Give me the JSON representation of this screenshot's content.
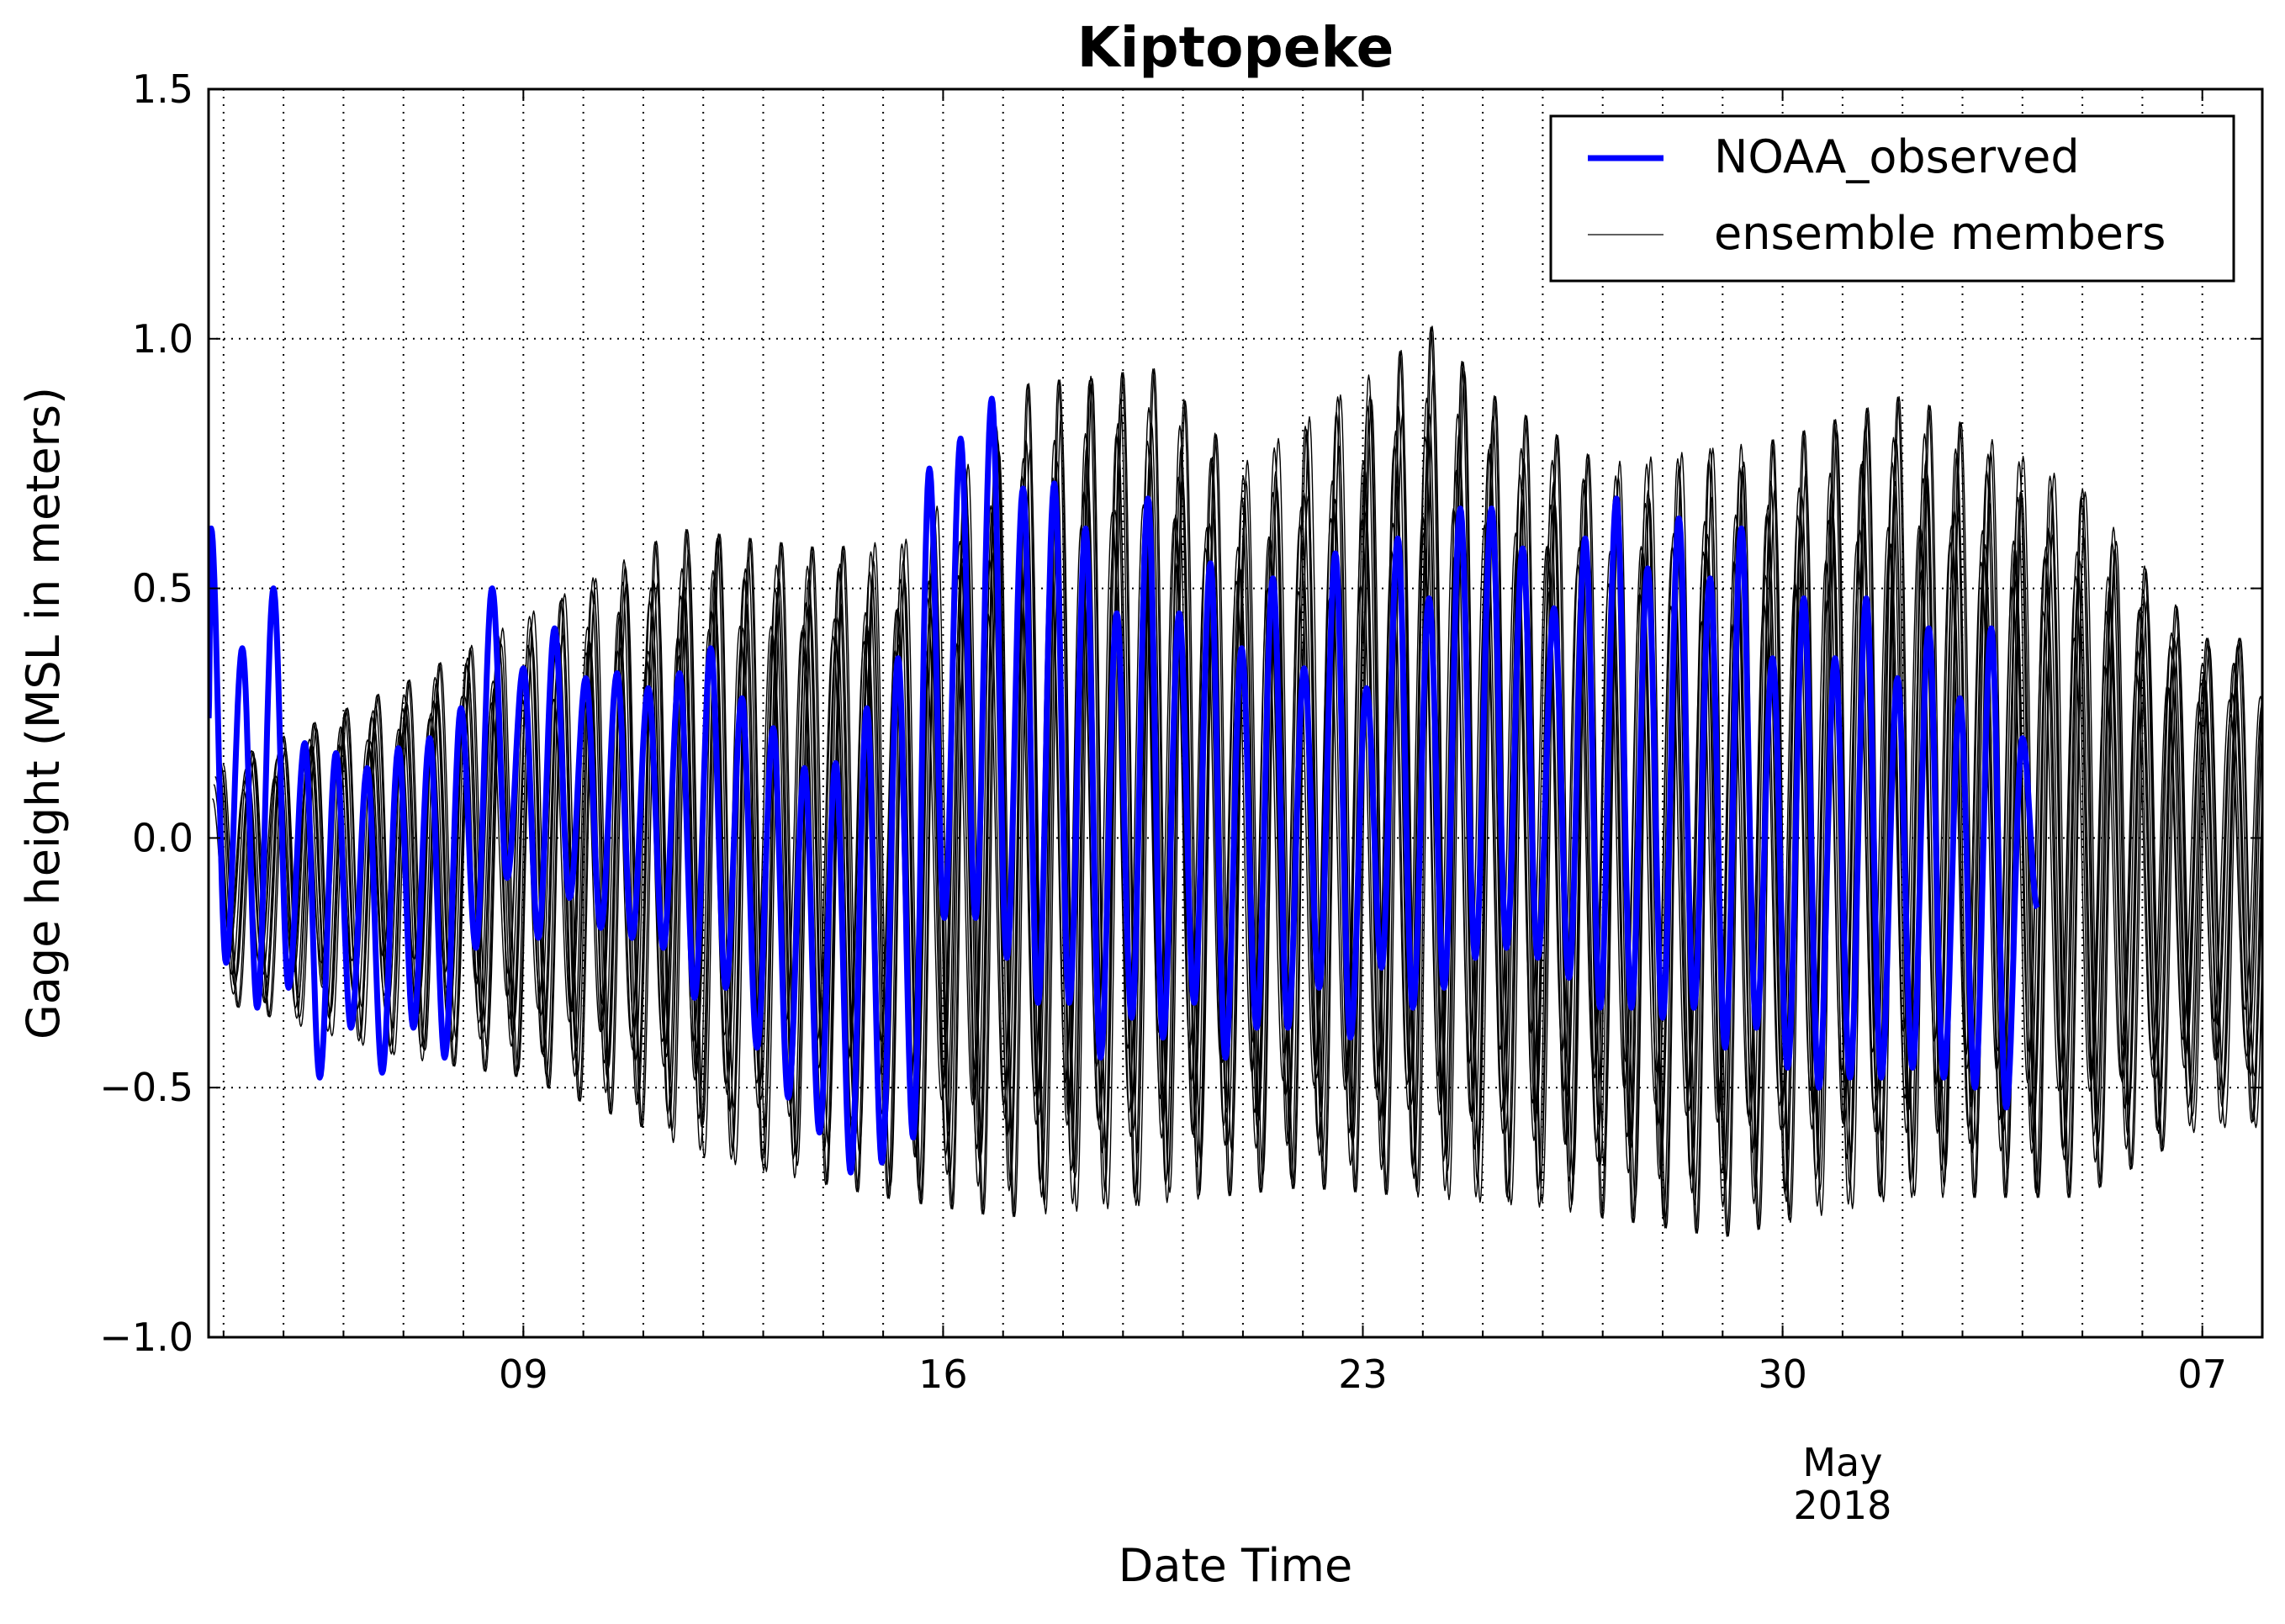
{
  "chart_data": {
    "type": "line",
    "title": "Kiptopeke",
    "xlabel": "Date Time",
    "ylabel": "Gage height (MSL in meters)",
    "ylim": [
      -1.0,
      1.5
    ],
    "xlim": [
      "2018-04-03T18:00",
      "2018-05-08T00:00"
    ],
    "yticks": [
      {
        "value": 1.5,
        "label": "1.5"
      },
      {
        "value": 1.0,
        "label": "1.0"
      },
      {
        "value": 0.5,
        "label": "0.5"
      },
      {
        "value": 0.0,
        "label": "0.0"
      },
      {
        "value": -0.5,
        "label": "−0.5"
      },
      {
        "value": -1.0,
        "label": "−1.0"
      }
    ],
    "xticks_major": [
      {
        "date": "2018-04-09",
        "label": "09"
      },
      {
        "date": "2018-04-16",
        "label": "16"
      },
      {
        "date": "2018-04-23",
        "label": "23"
      },
      {
        "date": "2018-04-30",
        "label": "30"
      },
      {
        "date": "2018-05-07",
        "label": "07"
      }
    ],
    "x_offset_label": {
      "date": "2018-05-01",
      "lines": [
        "May",
        "2018"
      ]
    },
    "grid": true,
    "grid_style": "dotted",
    "legend": {
      "position": "top-right",
      "entries": [
        {
          "label": "NOAA_observed",
          "color": "#0000ff"
        },
        {
          "label": "ensemble members",
          "color": "#000000"
        }
      ]
    },
    "series": [
      {
        "name": "NOAA_observed",
        "color": "#0000ff",
        "x_end": "2018-05-04T06:00",
        "high_tides": [
          {
            "date": "2018-04-03T19:00",
            "value": 0.62
          },
          {
            "date": "2018-04-04T07:30",
            "value": 0.38
          },
          {
            "date": "2018-04-04T20:00",
            "value": 0.5
          },
          {
            "date": "2018-04-05T08:30",
            "value": 0.19
          },
          {
            "date": "2018-04-05T21:00",
            "value": 0.17
          },
          {
            "date": "2018-04-06T09:30",
            "value": 0.14
          },
          {
            "date": "2018-04-06T22:00",
            "value": 0.18
          },
          {
            "date": "2018-04-07T10:30",
            "value": 0.2
          },
          {
            "date": "2018-04-07T23:00",
            "value": 0.26
          },
          {
            "date": "2018-04-08T11:30",
            "value": 0.5
          },
          {
            "date": "2018-04-09T00:00",
            "value": 0.34
          },
          {
            "date": "2018-04-09T12:30",
            "value": 0.42
          },
          {
            "date": "2018-04-10T01:00",
            "value": 0.32
          },
          {
            "date": "2018-04-10T13:30",
            "value": 0.33
          },
          {
            "date": "2018-04-11T02:00",
            "value": 0.3
          },
          {
            "date": "2018-04-11T14:30",
            "value": 0.33
          },
          {
            "date": "2018-04-12T03:00",
            "value": 0.38
          },
          {
            "date": "2018-04-12T15:30",
            "value": 0.28
          },
          {
            "date": "2018-04-13T04:00",
            "value": 0.22
          },
          {
            "date": "2018-04-13T16:30",
            "value": 0.14
          },
          {
            "date": "2018-04-14T05:00",
            "value": 0.15
          },
          {
            "date": "2018-04-14T17:30",
            "value": 0.26
          },
          {
            "date": "2018-04-15T06:00",
            "value": 0.36
          },
          {
            "date": "2018-04-15T18:30",
            "value": 0.74
          },
          {
            "date": "2018-04-16T07:00",
            "value": 0.8
          },
          {
            "date": "2018-04-16T19:30",
            "value": 0.88
          },
          {
            "date": "2018-04-17T08:00",
            "value": 0.7
          },
          {
            "date": "2018-04-17T20:30",
            "value": 0.71
          },
          {
            "date": "2018-04-18T09:00",
            "value": 0.62
          },
          {
            "date": "2018-04-18T21:30",
            "value": 0.45
          },
          {
            "date": "2018-04-19T10:00",
            "value": 0.68
          },
          {
            "date": "2018-04-19T22:30",
            "value": 0.45
          },
          {
            "date": "2018-04-20T11:00",
            "value": 0.55
          },
          {
            "date": "2018-04-20T23:30",
            "value": 0.38
          },
          {
            "date": "2018-04-21T12:00",
            "value": 0.52
          },
          {
            "date": "2018-04-22T00:30",
            "value": 0.34
          },
          {
            "date": "2018-04-22T13:00",
            "value": 0.57
          },
          {
            "date": "2018-04-23T01:30",
            "value": 0.3
          },
          {
            "date": "2018-04-23T14:00",
            "value": 0.6
          },
          {
            "date": "2018-04-24T02:30",
            "value": 0.48
          },
          {
            "date": "2018-04-24T15:00",
            "value": 0.66
          },
          {
            "date": "2018-04-25T03:30",
            "value": 0.66
          },
          {
            "date": "2018-04-25T16:00",
            "value": 0.58
          },
          {
            "date": "2018-04-26T04:30",
            "value": 0.46
          },
          {
            "date": "2018-04-26T17:00",
            "value": 0.6
          },
          {
            "date": "2018-04-27T05:30",
            "value": 0.68
          },
          {
            "date": "2018-04-27T18:00",
            "value": 0.54
          },
          {
            "date": "2018-04-28T06:30",
            "value": 0.64
          },
          {
            "date": "2018-04-28T19:00",
            "value": 0.52
          },
          {
            "date": "2018-04-29T07:30",
            "value": 0.62
          },
          {
            "date": "2018-04-29T20:00",
            "value": 0.36
          },
          {
            "date": "2018-04-30T08:30",
            "value": 0.48
          },
          {
            "date": "2018-04-30T21:00",
            "value": 0.36
          },
          {
            "date": "2018-05-01T09:30",
            "value": 0.48
          },
          {
            "date": "2018-05-01T22:00",
            "value": 0.32
          },
          {
            "date": "2018-05-02T10:30",
            "value": 0.42
          },
          {
            "date": "2018-05-02T23:00",
            "value": 0.28
          },
          {
            "date": "2018-05-03T11:30",
            "value": 0.42
          },
          {
            "date": "2018-05-04T00:00",
            "value": 0.2
          }
        ],
        "low_tides": [
          {
            "date": "2018-04-04T01:00",
            "value": -0.25
          },
          {
            "date": "2018-04-04T13:30",
            "value": -0.34
          },
          {
            "date": "2018-04-05T02:00",
            "value": -0.3
          },
          {
            "date": "2018-04-05T14:30",
            "value": -0.48
          },
          {
            "date": "2018-04-06T03:00",
            "value": -0.38
          },
          {
            "date": "2018-04-06T15:30",
            "value": -0.47
          },
          {
            "date": "2018-04-07T04:00",
            "value": -0.38
          },
          {
            "date": "2018-04-07T16:30",
            "value": -0.44
          },
          {
            "date": "2018-04-08T05:00",
            "value": -0.22
          },
          {
            "date": "2018-04-08T17:30",
            "value": -0.08
          },
          {
            "date": "2018-04-09T06:00",
            "value": -0.2
          },
          {
            "date": "2018-04-09T18:30",
            "value": -0.12
          },
          {
            "date": "2018-04-10T07:00",
            "value": -0.18
          },
          {
            "date": "2018-04-10T19:30",
            "value": -0.2
          },
          {
            "date": "2018-04-11T08:00",
            "value": -0.22
          },
          {
            "date": "2018-04-11T20:30",
            "value": -0.32
          },
          {
            "date": "2018-04-12T09:00",
            "value": -0.3
          },
          {
            "date": "2018-04-12T21:30",
            "value": -0.42
          },
          {
            "date": "2018-04-13T10:00",
            "value": -0.52
          },
          {
            "date": "2018-04-13T22:30",
            "value": -0.59
          },
          {
            "date": "2018-04-14T11:00",
            "value": -0.67
          },
          {
            "date": "2018-04-14T23:30",
            "value": -0.65
          },
          {
            "date": "2018-04-15T12:00",
            "value": -0.6
          },
          {
            "date": "2018-04-16T00:30",
            "value": -0.16
          },
          {
            "date": "2018-04-16T13:00",
            "value": -0.16
          },
          {
            "date": "2018-04-17T01:30",
            "value": -0.24
          },
          {
            "date": "2018-04-17T14:00",
            "value": -0.33
          },
          {
            "date": "2018-04-18T02:30",
            "value": -0.33
          },
          {
            "date": "2018-04-18T15:00",
            "value": -0.44
          },
          {
            "date": "2018-04-19T03:30",
            "value": -0.36
          },
          {
            "date": "2018-04-19T16:00",
            "value": -0.4
          },
          {
            "date": "2018-04-20T04:30",
            "value": -0.33
          },
          {
            "date": "2018-04-20T17:00",
            "value": -0.44
          },
          {
            "date": "2018-04-21T05:30",
            "value": -0.38
          },
          {
            "date": "2018-04-21T18:00",
            "value": -0.38
          },
          {
            "date": "2018-04-22T06:30",
            "value": -0.3
          },
          {
            "date": "2018-04-22T19:00",
            "value": -0.4
          },
          {
            "date": "2018-04-23T07:30",
            "value": -0.26
          },
          {
            "date": "2018-04-23T20:00",
            "value": -0.34
          },
          {
            "date": "2018-04-24T08:30",
            "value": -0.3
          },
          {
            "date": "2018-04-24T21:00",
            "value": -0.24
          },
          {
            "date": "2018-04-25T09:30",
            "value": -0.22
          },
          {
            "date": "2018-04-25T22:00",
            "value": -0.24
          },
          {
            "date": "2018-04-26T10:30",
            "value": -0.28
          },
          {
            "date": "2018-04-26T23:00",
            "value": -0.34
          },
          {
            "date": "2018-04-27T11:30",
            "value": -0.34
          },
          {
            "date": "2018-04-28T00:00",
            "value": -0.36
          },
          {
            "date": "2018-04-28T12:30",
            "value": -0.34
          },
          {
            "date": "2018-04-29T01:00",
            "value": -0.42
          },
          {
            "date": "2018-04-29T13:30",
            "value": -0.38
          },
          {
            "date": "2018-04-30T02:00",
            "value": -0.46
          },
          {
            "date": "2018-04-30T14:30",
            "value": -0.5
          },
          {
            "date": "2018-05-01T03:00",
            "value": -0.48
          },
          {
            "date": "2018-05-01T15:30",
            "value": -0.48
          },
          {
            "date": "2018-05-02T04:00",
            "value": -0.46
          },
          {
            "date": "2018-05-02T16:30",
            "value": -0.48
          },
          {
            "date": "2018-05-03T05:00",
            "value": -0.5
          },
          {
            "date": "2018-05-03T17:30",
            "value": -0.54
          },
          {
            "date": "2018-05-04T06:00",
            "value": -0.14
          }
        ]
      },
      {
        "name": "ensemble members",
        "color": "#000000",
        "x_end": "2018-05-08T00:00",
        "description_envelope": "multiple thin black traces; tidal amplitude envelope",
        "envelope_max": [
          {
            "date": "2018-04-04",
            "value": 0.15
          },
          {
            "date": "2018-04-07",
            "value": 0.31
          },
          {
            "date": "2018-04-10",
            "value": 0.51
          },
          {
            "date": "2018-04-11T14:00",
            "value": 0.62
          },
          {
            "date": "2018-04-14",
            "value": 0.58
          },
          {
            "date": "2018-04-15T12:00",
            "value": 0.6
          },
          {
            "date": "2018-04-17T10:00",
            "value": 0.91
          },
          {
            "date": "2018-04-19T13:00",
            "value": 0.94
          },
          {
            "date": "2018-04-21",
            "value": 0.75
          },
          {
            "date": "2018-04-23T06:00",
            "value": 0.94
          },
          {
            "date": "2018-04-24T05:00",
            "value": 1.03
          },
          {
            "date": "2018-04-25",
            "value": 0.9
          },
          {
            "date": "2018-04-27",
            "value": 0.75
          },
          {
            "date": "2018-04-30",
            "value": 0.8
          },
          {
            "date": "2018-05-02T02:00",
            "value": 0.89
          },
          {
            "date": "2018-05-05",
            "value": 0.7
          },
          {
            "date": "2018-05-07",
            "value": 0.4
          }
        ],
        "envelope_min": [
          {
            "date": "2018-04-04",
            "value": -0.33
          },
          {
            "date": "2018-04-07",
            "value": -0.44
          },
          {
            "date": "2018-04-09",
            "value": -0.48
          },
          {
            "date": "2018-04-11",
            "value": -0.58
          },
          {
            "date": "2018-04-12",
            "value": -0.64
          },
          {
            "date": "2018-04-15",
            "value": -0.72
          },
          {
            "date": "2018-04-17",
            "value": -0.76
          },
          {
            "date": "2018-04-19",
            "value": -0.74
          },
          {
            "date": "2018-04-22",
            "value": -0.7
          },
          {
            "date": "2018-04-26",
            "value": -0.74
          },
          {
            "date": "2018-04-29",
            "value": -0.8
          },
          {
            "date": "2018-05-02",
            "value": -0.72
          },
          {
            "date": "2018-05-05",
            "value": -0.72
          },
          {
            "date": "2018-05-07",
            "value": -0.58
          }
        ]
      }
    ]
  }
}
